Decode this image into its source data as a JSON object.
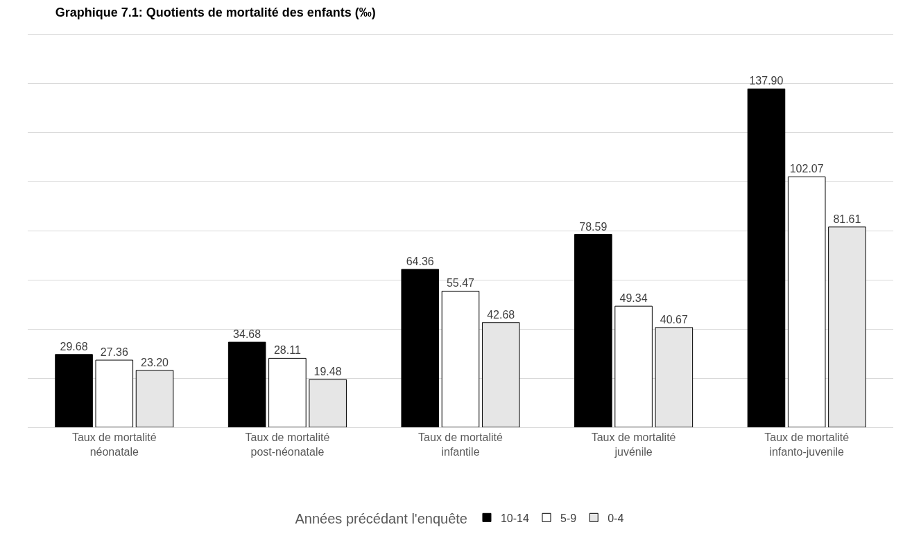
{
  "chart_data": {
    "type": "bar",
    "title": "Graphique 7.1: Quotients de mortalité des enfants (‰)",
    "legend_title": "Années précédant l'enquête",
    "categories": [
      "Taux de mortalité néonatale",
      "Taux de mortalité post-néonatale",
      "Taux de mortalité infantile",
      "Taux de mortalité juvénile",
      "Taux de mortalité infanto-juvenile"
    ],
    "series": [
      {
        "name": "10-14",
        "color": "#000000",
        "values": [
          29.68,
          34.68,
          64.36,
          78.59,
          137.9
        ],
        "value_labels": [
          "29.68",
          "34.68",
          "64.36",
          "78.59",
          "137.90"
        ]
      },
      {
        "name": "5-9",
        "color": "#ffffff",
        "values": [
          27.36,
          28.11,
          55.47,
          49.34,
          102.07
        ],
        "value_labels": [
          "27.36",
          "28.11",
          "55.47",
          "49.34",
          "102.07"
        ]
      },
      {
        "name": "0-4",
        "color": "#e6e6e6",
        "values": [
          23.2,
          19.48,
          42.68,
          40.67,
          81.61
        ],
        "value_labels": [
          "23.20",
          "19.48",
          "42.68",
          "40.67",
          "81.61"
        ]
      }
    ],
    "ylim": [
      0,
      160
    ],
    "yticks": [
      {
        "value": 0,
        "label": null
      },
      {
        "value": 20,
        "label": null
      },
      {
        "value": 40,
        "label": null
      },
      {
        "value": 60,
        "label": null
      },
      {
        "value": 80,
        "label": null
      },
      {
        "value": 100,
        "label": null
      },
      {
        "value": 120,
        "label": null
      },
      {
        "value": 140,
        "label": null
      },
      {
        "value": 160,
        "label": null
      }
    ],
    "grid": "y",
    "legend": "bottom",
    "tick_labels": "x"
  }
}
